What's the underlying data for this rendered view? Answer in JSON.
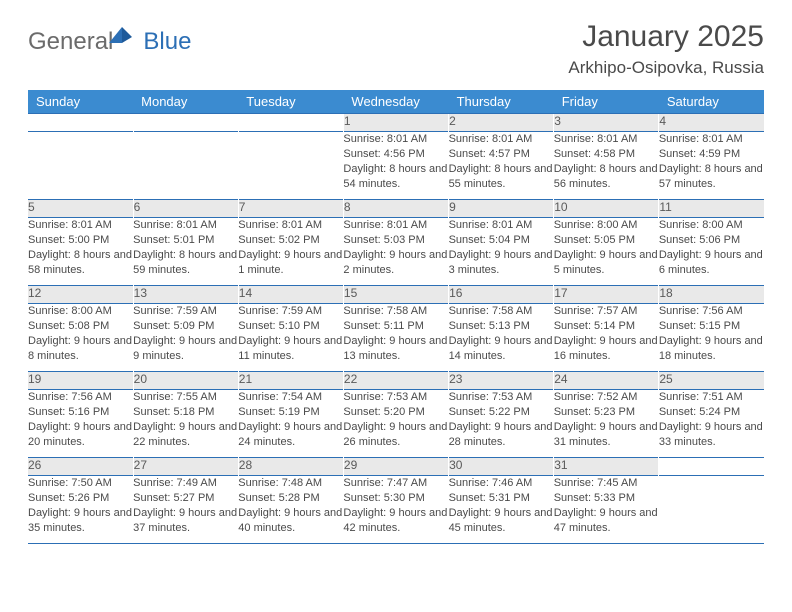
{
  "logo": {
    "textGeneral": "General",
    "textBlue": "Blue"
  },
  "title": "January 2025",
  "location": "Arkhipo-Osipovka, Russia",
  "colors": {
    "headerBg": "#3b8bd0",
    "headerBorder": "#2c6fb5",
    "dayNumBg": "#e9e9e9",
    "text": "#4a4a4a"
  },
  "dayHeaders": [
    "Sunday",
    "Monday",
    "Tuesday",
    "Wednesday",
    "Thursday",
    "Friday",
    "Saturday"
  ],
  "weeks": [
    [
      null,
      null,
      null,
      {
        "n": "1",
        "sr": "8:01 AM",
        "ss": "4:56 PM",
        "dl": "8 hours and 54 minutes."
      },
      {
        "n": "2",
        "sr": "8:01 AM",
        "ss": "4:57 PM",
        "dl": "8 hours and 55 minutes."
      },
      {
        "n": "3",
        "sr": "8:01 AM",
        "ss": "4:58 PM",
        "dl": "8 hours and 56 minutes."
      },
      {
        "n": "4",
        "sr": "8:01 AM",
        "ss": "4:59 PM",
        "dl": "8 hours and 57 minutes."
      }
    ],
    [
      {
        "n": "5",
        "sr": "8:01 AM",
        "ss": "5:00 PM",
        "dl": "8 hours and 58 minutes."
      },
      {
        "n": "6",
        "sr": "8:01 AM",
        "ss": "5:01 PM",
        "dl": "8 hours and 59 minutes."
      },
      {
        "n": "7",
        "sr": "8:01 AM",
        "ss": "5:02 PM",
        "dl": "9 hours and 1 minute."
      },
      {
        "n": "8",
        "sr": "8:01 AM",
        "ss": "5:03 PM",
        "dl": "9 hours and 2 minutes."
      },
      {
        "n": "9",
        "sr": "8:01 AM",
        "ss": "5:04 PM",
        "dl": "9 hours and 3 minutes."
      },
      {
        "n": "10",
        "sr": "8:00 AM",
        "ss": "5:05 PM",
        "dl": "9 hours and 5 minutes."
      },
      {
        "n": "11",
        "sr": "8:00 AM",
        "ss": "5:06 PM",
        "dl": "9 hours and 6 minutes."
      }
    ],
    [
      {
        "n": "12",
        "sr": "8:00 AM",
        "ss": "5:08 PM",
        "dl": "9 hours and 8 minutes."
      },
      {
        "n": "13",
        "sr": "7:59 AM",
        "ss": "5:09 PM",
        "dl": "9 hours and 9 minutes."
      },
      {
        "n": "14",
        "sr": "7:59 AM",
        "ss": "5:10 PM",
        "dl": "9 hours and 11 minutes."
      },
      {
        "n": "15",
        "sr": "7:58 AM",
        "ss": "5:11 PM",
        "dl": "9 hours and 13 minutes."
      },
      {
        "n": "16",
        "sr": "7:58 AM",
        "ss": "5:13 PM",
        "dl": "9 hours and 14 minutes."
      },
      {
        "n": "17",
        "sr": "7:57 AM",
        "ss": "5:14 PM",
        "dl": "9 hours and 16 minutes."
      },
      {
        "n": "18",
        "sr": "7:56 AM",
        "ss": "5:15 PM",
        "dl": "9 hours and 18 minutes."
      }
    ],
    [
      {
        "n": "19",
        "sr": "7:56 AM",
        "ss": "5:16 PM",
        "dl": "9 hours and 20 minutes."
      },
      {
        "n": "20",
        "sr": "7:55 AM",
        "ss": "5:18 PM",
        "dl": "9 hours and 22 minutes."
      },
      {
        "n": "21",
        "sr": "7:54 AM",
        "ss": "5:19 PM",
        "dl": "9 hours and 24 minutes."
      },
      {
        "n": "22",
        "sr": "7:53 AM",
        "ss": "5:20 PM",
        "dl": "9 hours and 26 minutes."
      },
      {
        "n": "23",
        "sr": "7:53 AM",
        "ss": "5:22 PM",
        "dl": "9 hours and 28 minutes."
      },
      {
        "n": "24",
        "sr": "7:52 AM",
        "ss": "5:23 PM",
        "dl": "9 hours and 31 minutes."
      },
      {
        "n": "25",
        "sr": "7:51 AM",
        "ss": "5:24 PM",
        "dl": "9 hours and 33 minutes."
      }
    ],
    [
      {
        "n": "26",
        "sr": "7:50 AM",
        "ss": "5:26 PM",
        "dl": "9 hours and 35 minutes."
      },
      {
        "n": "27",
        "sr": "7:49 AM",
        "ss": "5:27 PM",
        "dl": "9 hours and 37 minutes."
      },
      {
        "n": "28",
        "sr": "7:48 AM",
        "ss": "5:28 PM",
        "dl": "9 hours and 40 minutes."
      },
      {
        "n": "29",
        "sr": "7:47 AM",
        "ss": "5:30 PM",
        "dl": "9 hours and 42 minutes."
      },
      {
        "n": "30",
        "sr": "7:46 AM",
        "ss": "5:31 PM",
        "dl": "9 hours and 45 minutes."
      },
      {
        "n": "31",
        "sr": "7:45 AM",
        "ss": "5:33 PM",
        "dl": "9 hours and 47 minutes."
      },
      null
    ]
  ],
  "labels": {
    "sunrise": "Sunrise:",
    "sunset": "Sunset:",
    "daylight": "Daylight:"
  }
}
